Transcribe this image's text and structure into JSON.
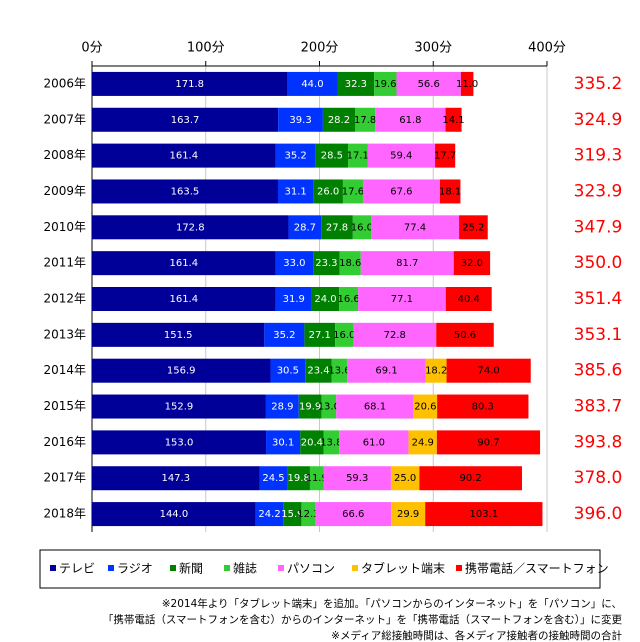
{
  "chart_data": {
    "type": "stacked-barh",
    "categories": [
      "2006年",
      "2007年",
      "2008年",
      "2009年",
      "2010年",
      "2011年",
      "2012年",
      "2013年",
      "2014年",
      "2015年",
      "2016年",
      "2017年",
      "2018年"
    ],
    "series": [
      {
        "name": "テレビ",
        "color": "#000099",
        "label_color": "#ffffff",
        "values": [
          171.8,
          163.7,
          161.4,
          163.5,
          172.8,
          161.4,
          161.4,
          151.5,
          156.9,
          152.9,
          153.0,
          147.3,
          144.0
        ],
        "value_labels": [
          "171.8",
          "163.7",
          "161.4",
          "163.5",
          "172.8",
          "161.4",
          "161.4",
          "151.5",
          "156.9",
          "152.9",
          "153.0",
          "147.3",
          "144.0"
        ]
      },
      {
        "name": "ラジオ",
        "color": "#0033ff",
        "label_color": "#ffffff",
        "values": [
          44.0,
          39.3,
          35.2,
          31.1,
          28.7,
          33.0,
          31.9,
          35.2,
          30.5,
          28.9,
          30.1,
          24.5,
          24.2
        ],
        "value_labels": [
          "44.0",
          "39.3",
          "35.2",
          "31.1",
          "28.7",
          "33.0",
          "31.9",
          "35.2",
          "30.5",
          "28.9",
          "30.1",
          "24.5",
          "24.2"
        ]
      },
      {
        "name": "新聞",
        "color": "#008000",
        "label_color": "#ffffff",
        "values": [
          32.3,
          28.2,
          28.5,
          26.0,
          27.8,
          23.3,
          24.0,
          27.1,
          23.4,
          19.9,
          20.4,
          19.8,
          15.9
        ],
        "value_labels": [
          "32.3",
          "28.2",
          "28.5",
          "26.0",
          "27.8",
          "23.3",
          "24.0",
          "27.1",
          "23.4",
          "19.9",
          "20.4",
          "19.8",
          "15.9"
        ]
      },
      {
        "name": "雑誌",
        "color": "#33cc33",
        "label_color": "#000000",
        "values": [
          19.6,
          17.8,
          17.1,
          17.6,
          16.0,
          18.6,
          16.6,
          16.0,
          13.6,
          13.0,
          13.8,
          11.9,
          12.3
        ],
        "value_labels": [
          "19.6",
          "17.8",
          "17.1",
          "17.6",
          "16.0",
          "18.6",
          "16.6",
          "16.0",
          "13.6",
          "13.0",
          "13.8",
          "11.9",
          "12.3"
        ]
      },
      {
        "name": "パソコン",
        "color": "#ff66ff",
        "label_color": "#000000",
        "values": [
          56.6,
          61.8,
          59.4,
          67.6,
          77.4,
          81.7,
          77.1,
          72.8,
          69.1,
          68.1,
          61.0,
          59.3,
          66.6
        ],
        "value_labels": [
          "56.6",
          "61.8",
          "59.4",
          "67.6",
          "77.4",
          "81.7",
          "77.1",
          "72.8",
          "69.1",
          "68.1",
          "61.0",
          "59.3",
          "66.6"
        ]
      },
      {
        "name": "タブレット端末",
        "color": "#ffc000",
        "label_color": "#000000",
        "values": [
          null,
          null,
          null,
          null,
          null,
          null,
          null,
          null,
          18.2,
          20.6,
          24.9,
          25.0,
          29.9
        ],
        "value_labels": [
          null,
          null,
          null,
          null,
          null,
          null,
          null,
          null,
          "18.2",
          "20.6",
          "24.9",
          "25.0",
          "29.9"
        ]
      },
      {
        "name": "携帯電話／スマートフォン",
        "color": "#ff0000",
        "label_color": "#000000",
        "values": [
          11.0,
          14.1,
          17.7,
          18.1,
          25.2,
          32.0,
          40.4,
          50.6,
          74.0,
          80.3,
          90.7,
          90.2,
          103.1
        ],
        "value_labels": [
          "11.0",
          "14.1",
          "17.7",
          "18.1",
          "25.2",
          "32.0",
          "40.4",
          "50.6",
          "74.0",
          "80.3",
          "90.7",
          "90.2",
          "103.1"
        ]
      }
    ],
    "totals": [
      335.2,
      324.9,
      319.3,
      323.9,
      347.9,
      350.0,
      351.4,
      353.1,
      385.6,
      383.7,
      393.8,
      378.0,
      396.0
    ],
    "total_labels": [
      "335.2",
      "324.9",
      "319.3",
      "323.9",
      "347.9",
      "350.0",
      "351.4",
      "353.1",
      "385.6",
      "383.7",
      "393.8",
      "378.0",
      "396.0"
    ],
    "total_color": "#ff0000",
    "xlim": [
      0,
      400
    ],
    "xticks": [
      {
        "value": 0,
        "label": "0分"
      },
      {
        "value": 100,
        "label": "100分"
      },
      {
        "value": 200,
        "label": "200分"
      },
      {
        "value": 300,
        "label": "300分"
      },
      {
        "value": 400,
        "label": "400分"
      }
    ],
    "grid": true,
    "legend": "bottom",
    "notes": [
      "※2014年より「タブレット端末」を追加。「パソコンからのインターネット」を「パソコン」に、",
      "「携帯電話（スマートフォンを含む）からのインターネット」を「携帯電話（スマートフォンを含む）」に変更",
      "※メディア総接触時間は、各メディア接触者の接触時間の合計"
    ]
  }
}
